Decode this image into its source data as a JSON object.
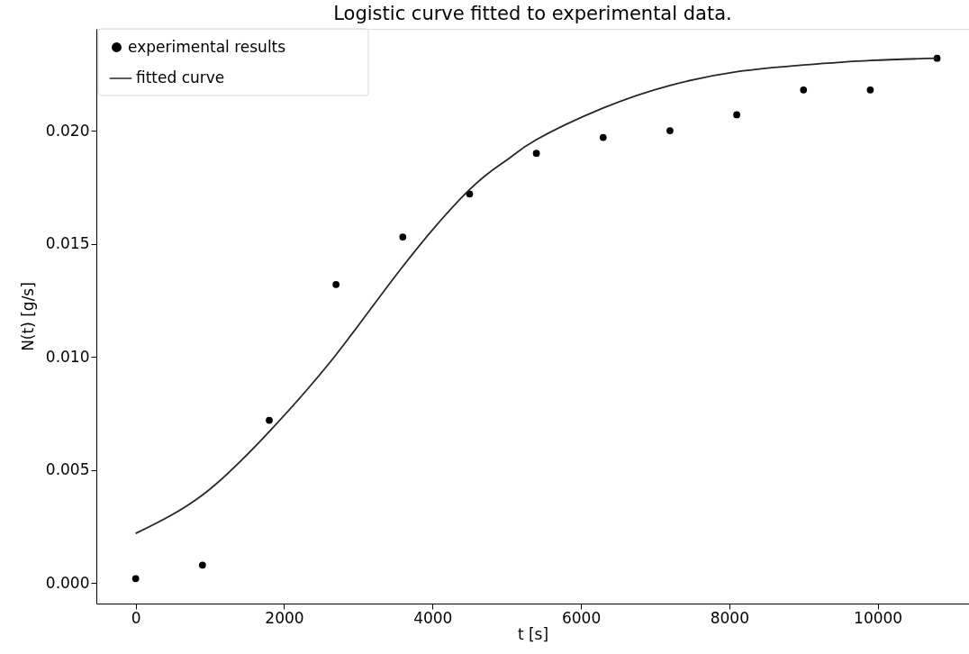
{
  "chart_data": {
    "type": "scatter",
    "title": "Logistic curve fitted to experimental data.",
    "xlabel": "t [s]",
    "ylabel": "N(t) [g/s]",
    "xlim": [
      -530,
      11230
    ],
    "ylim": [
      -0.0009,
      0.0245
    ],
    "xticks": [
      0,
      2000,
      4000,
      6000,
      8000,
      10000
    ],
    "yticks": [
      {
        "value": 0,
        "label": "0.000"
      },
      {
        "value": 0.005,
        "label": "0.005"
      },
      {
        "value": 0.01,
        "label": "0.010"
      },
      {
        "value": 0.015,
        "label": "0.015"
      },
      {
        "value": 0.02,
        "label": "0.020"
      }
    ],
    "legend": "top left",
    "series": [
      {
        "name": "experimental results",
        "marker": "circle",
        "color": "#000000",
        "x": [
          0,
          900,
          1800,
          2700,
          3600,
          4500,
          5400,
          6300,
          7200,
          8100,
          9000,
          9900,
          10800
        ],
        "values": [
          0.0002,
          0.0008,
          0.0072,
          0.0132,
          0.0153,
          0.0172,
          0.019,
          0.0197,
          0.02,
          0.0207,
          0.0218,
          0.0218,
          0.0232
        ]
      },
      {
        "name": "fitted curve",
        "type": "line",
        "line_style": "solid",
        "color": "#262626",
        "x": [
          0,
          900,
          1800,
          2700,
          3600,
          4500,
          5000,
          5400,
          6300,
          7200,
          8100,
          9000,
          9900,
          10800
        ],
        "values": [
          0.0022,
          0.0039,
          0.0067,
          0.0101,
          0.014,
          0.0174,
          0.0187,
          0.0196,
          0.021,
          0.022,
          0.0226,
          0.0229,
          0.0231,
          0.0232
        ]
      }
    ]
  }
}
